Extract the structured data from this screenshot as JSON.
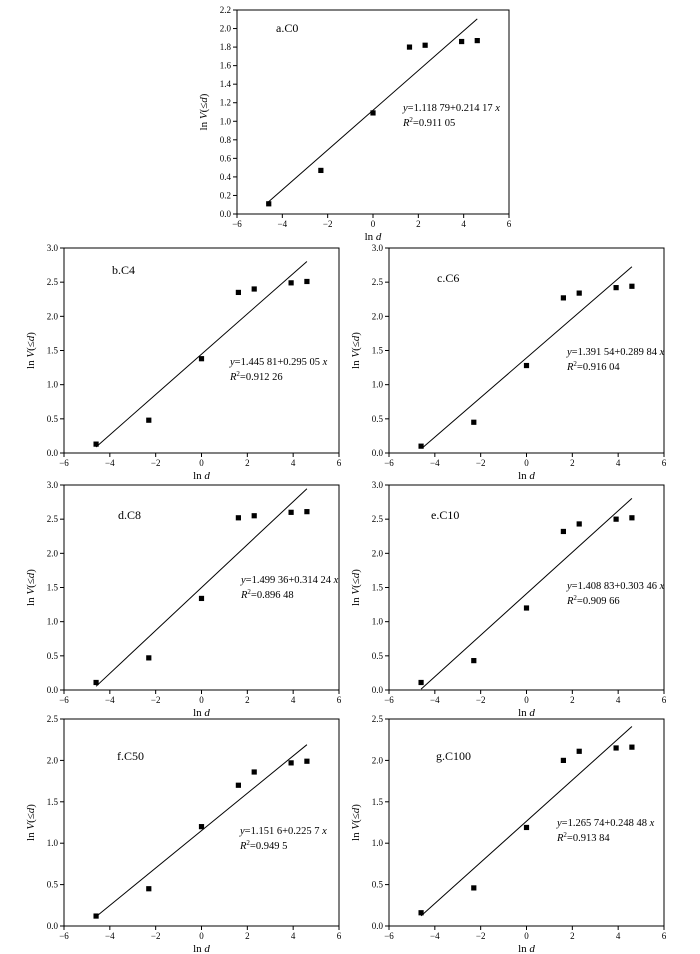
{
  "chart_data": [
    {
      "type": "scatter",
      "title": "a.C0",
      "xlabel": "ln d",
      "ylabel": "ln V(≤d)",
      "xlim": [
        -6,
        6
      ],
      "ylim": [
        0,
        2.2
      ],
      "x_ticks": [
        -6,
        -4,
        -2,
        0,
        2,
        4,
        6
      ],
      "y_ticks": [
        0.0,
        0.2,
        0.4,
        0.6,
        0.8,
        1.0,
        1.2,
        1.4,
        1.6,
        1.8,
        2.0,
        2.2
      ],
      "y_tick_labels": [
        "0.0",
        "0.2",
        "0.4",
        "0.6",
        "0.8",
        "1.0",
        "1.2",
        "1.4",
        "1.6",
        "1.8",
        "2.0",
        "2.2"
      ],
      "points": [
        [
          -4.6,
          0.11
        ],
        [
          -2.3,
          0.47
        ],
        [
          0.0,
          1.09
        ],
        [
          1.61,
          1.8
        ],
        [
          2.3,
          1.82
        ],
        [
          3.91,
          1.86
        ],
        [
          4.6,
          1.87
        ]
      ],
      "fit": {
        "intercept": 1.11879,
        "slope": 0.21417,
        "x_range": [
          -4.7,
          4.6
        ]
      },
      "equation": "y=1.118 79+0.214 17 x",
      "r2": "R2=0.911 05"
    },
    {
      "type": "scatter",
      "title": "b.C4",
      "xlabel": "ln d",
      "ylabel": "ln V(≤d)",
      "xlim": [
        -6,
        6
      ],
      "ylim": [
        0,
        3.0
      ],
      "x_ticks": [
        -6,
        -4,
        -2,
        0,
        2,
        4,
        6
      ],
      "y_ticks": [
        0.0,
        0.5,
        1.0,
        1.5,
        2.0,
        2.5,
        3.0
      ],
      "y_tick_labels": [
        "0.0",
        "0.5",
        "1.0",
        "1.5",
        "2.0",
        "2.5",
        "3.0"
      ],
      "points": [
        [
          -4.6,
          0.13
        ],
        [
          -2.3,
          0.48
        ],
        [
          0.0,
          1.38
        ],
        [
          1.61,
          2.35
        ],
        [
          2.3,
          2.4
        ],
        [
          3.91,
          2.49
        ],
        [
          4.6,
          2.51
        ]
      ],
      "fit": {
        "intercept": 1.44581,
        "slope": 0.29505,
        "x_range": [
          -4.6,
          4.6
        ]
      },
      "equation": "y=1.445 81+0.295 05 x",
      "r2": "R2=0.912 26"
    },
    {
      "type": "scatter",
      "title": "c.C6",
      "xlabel": "ln d",
      "ylabel": "ln V(≤d)",
      "xlim": [
        -6,
        6
      ],
      "ylim": [
        0,
        3.0
      ],
      "x_ticks": [
        -6,
        -4,
        -2,
        0,
        2,
        4,
        6
      ],
      "y_ticks": [
        0.0,
        0.5,
        1.0,
        1.5,
        2.0,
        2.5,
        3.0
      ],
      "y_tick_labels": [
        "0.0",
        "0.5",
        "1.0",
        "1.5",
        "2.0",
        "2.5",
        "3.0"
      ],
      "points": [
        [
          -4.6,
          0.1
        ],
        [
          -2.3,
          0.45
        ],
        [
          0.0,
          1.28
        ],
        [
          1.61,
          2.27
        ],
        [
          2.3,
          2.34
        ],
        [
          3.91,
          2.42
        ],
        [
          4.6,
          2.44
        ]
      ],
      "fit": {
        "intercept": 1.39154,
        "slope": 0.28984,
        "x_range": [
          -4.55,
          4.6
        ]
      },
      "equation": "y=1.391 54+0.289 84 x",
      "r2": "R2=0.916 04"
    },
    {
      "type": "scatter",
      "title": "d.C8",
      "xlabel": "ln d",
      "ylabel": "ln V(≤d)",
      "xlim": [
        -6,
        6
      ],
      "ylim": [
        0,
        3.0
      ],
      "x_ticks": [
        -6,
        -4,
        -2,
        0,
        2,
        4,
        6
      ],
      "y_ticks": [
        0.0,
        0.5,
        1.0,
        1.5,
        2.0,
        2.5,
        3.0
      ],
      "y_tick_labels": [
        "0.0",
        "0.5",
        "1.0",
        "1.5",
        "2.0",
        "2.5",
        "3.0"
      ],
      "points": [
        [
          -4.6,
          0.11
        ],
        [
          -2.3,
          0.47
        ],
        [
          0.0,
          1.34
        ],
        [
          1.61,
          2.52
        ],
        [
          2.3,
          2.55
        ],
        [
          3.91,
          2.6
        ],
        [
          4.6,
          2.61
        ]
      ],
      "fit": {
        "intercept": 1.49936,
        "slope": 0.31424,
        "x_range": [
          -4.6,
          4.6
        ]
      },
      "equation": "y=1.499 36+0.314 24 x",
      "r2": "R2=0.896 48"
    },
    {
      "type": "scatter",
      "title": "e.C10",
      "xlabel": "ln d",
      "ylabel": "ln V(≤d)",
      "xlim": [
        -6,
        6
      ],
      "ylim": [
        0,
        3.0
      ],
      "x_ticks": [
        -6,
        -4,
        -2,
        0,
        2,
        4,
        6
      ],
      "y_ticks": [
        0.0,
        0.5,
        1.0,
        1.5,
        2.0,
        2.5,
        3.0
      ],
      "y_tick_labels": [
        "0.0",
        "0.5",
        "1.0",
        "1.5",
        "2.0",
        "2.5",
        "3.0"
      ],
      "points": [
        [
          -4.6,
          0.11
        ],
        [
          -2.3,
          0.43
        ],
        [
          0.0,
          1.2
        ],
        [
          1.61,
          2.32
        ],
        [
          2.3,
          2.43
        ],
        [
          3.91,
          2.5
        ],
        [
          4.6,
          2.52
        ]
      ],
      "fit": {
        "intercept": 1.40883,
        "slope": 0.30346,
        "x_range": [
          -4.6,
          4.6
        ]
      },
      "equation": "y=1.408 83+0.303 46 x",
      "r2": "R2=0.909 66"
    },
    {
      "type": "scatter",
      "title": "f.C50",
      "xlabel": "ln d",
      "ylabel": "ln V(≤d)",
      "xlim": [
        -6,
        6
      ],
      "ylim": [
        0,
        2.5
      ],
      "x_ticks": [
        -6,
        -4,
        -2,
        0,
        2,
        4,
        6
      ],
      "y_ticks": [
        0.0,
        0.5,
        1.0,
        1.5,
        2.0,
        2.5
      ],
      "y_tick_labels": [
        "0.0",
        "0.5",
        "1.0",
        "1.5",
        "2.0",
        "2.5"
      ],
      "points": [
        [
          -4.6,
          0.12
        ],
        [
          -2.3,
          0.45
        ],
        [
          0.0,
          1.2
        ],
        [
          1.61,
          1.7
        ],
        [
          2.3,
          1.86
        ],
        [
          3.91,
          1.97
        ],
        [
          4.6,
          1.99
        ]
      ],
      "fit": {
        "intercept": 1.1516,
        "slope": 0.2257,
        "x_range": [
          -4.6,
          4.6
        ]
      },
      "equation": "y=1.151 6+0.225 7 x",
      "r2": "R2=0.949 5"
    },
    {
      "type": "scatter",
      "title": "g.C100",
      "xlabel": "ln d",
      "ylabel": "ln V(≤d)",
      "xlim": [
        -6,
        6
      ],
      "ylim": [
        0,
        2.5
      ],
      "x_ticks": [
        -6,
        -4,
        -2,
        0,
        2,
        4,
        6
      ],
      "y_ticks": [
        0.0,
        0.5,
        1.0,
        1.5,
        2.0,
        2.5
      ],
      "y_tick_labels": [
        "0.0",
        "0.5",
        "1.0",
        "1.5",
        "2.0",
        "2.5"
      ],
      "points": [
        [
          -4.6,
          0.16
        ],
        [
          -2.3,
          0.46
        ],
        [
          0.0,
          1.19
        ],
        [
          1.61,
          2.0
        ],
        [
          2.3,
          2.11
        ],
        [
          3.91,
          2.15
        ],
        [
          4.6,
          2.16
        ]
      ],
      "fit": {
        "intercept": 1.26574,
        "slope": 0.24848,
        "x_range": [
          -4.6,
          4.6
        ]
      },
      "equation": "y=1.265 74+0.248 48 x",
      "r2": "R2=0.913 84"
    }
  ]
}
